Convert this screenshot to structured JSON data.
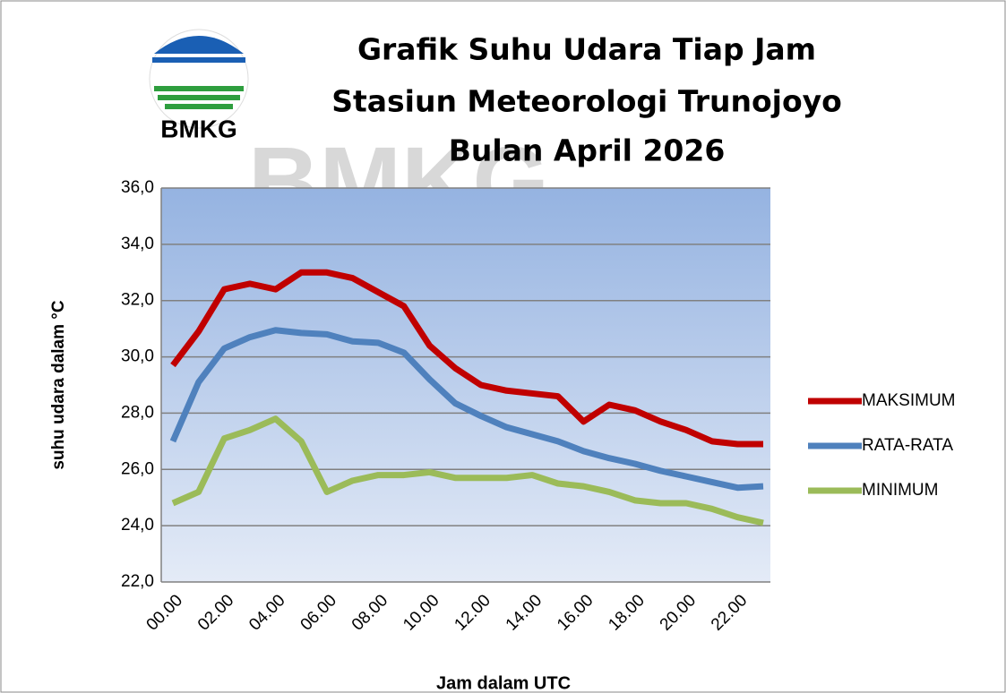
{
  "chart_data": {
    "type": "line",
    "title": [
      "Grafik Suhu Udara Tiap Jam",
      "Stasiun Meteorologi Trunojoyo",
      "Bulan April 2026"
    ],
    "logo_text": "BMKG",
    "watermark": "BMKG",
    "x_label": "Jam dalam UTC",
    "y_label": "suhu udara dalam °C",
    "categories": [
      "00.00",
      null,
      "02.00",
      null,
      "04.00",
      null,
      "06.00",
      null,
      "08.00",
      null,
      "10.00",
      null,
      "12.00",
      null,
      "14.00",
      null,
      "16.00",
      null,
      "18.00",
      null,
      "20.00",
      null,
      "22.00",
      null
    ],
    "series": [
      {
        "name": "MAKSIMUM",
        "color": "#c00000",
        "values": [
          29.7,
          30.9,
          32.4,
          32.6,
          32.4,
          33.0,
          33.0,
          32.8,
          32.3,
          31.8,
          30.4,
          29.6,
          29.0,
          28.8,
          28.7,
          28.6,
          27.7,
          28.3,
          28.1,
          27.7,
          27.4,
          27.0,
          26.9,
          26.9
        ]
      },
      {
        "name": "RATA-RATA",
        "color": "#4f81bd",
        "values": [
          27.0,
          29.1,
          30.3,
          30.7,
          30.95,
          30.85,
          30.8,
          30.55,
          30.5,
          30.15,
          29.2,
          28.35,
          27.9,
          27.5,
          27.25,
          27.0,
          26.65,
          26.4,
          26.2,
          25.95,
          25.75,
          25.55,
          25.35,
          25.4
        ]
      },
      {
        "name": "MINIMUM",
        "color": "#9bbb59",
        "values": [
          24.8,
          25.2,
          27.1,
          27.4,
          27.8,
          27.0,
          25.2,
          25.6,
          25.8,
          25.8,
          25.9,
          25.7,
          25.7,
          25.7,
          25.8,
          25.5,
          25.4,
          25.2,
          24.9,
          24.8,
          24.8,
          24.6,
          24.3,
          24.1
        ]
      }
    ],
    "ylim": [
      22,
      36
    ],
    "yticks": [
      {
        "value": 22,
        "label": "22,0"
      },
      {
        "value": 24,
        "label": "24,0"
      },
      {
        "value": 26,
        "label": "26,0"
      },
      {
        "value": 28,
        "label": "28,0"
      },
      {
        "value": 30,
        "label": "30,0"
      },
      {
        "value": 32,
        "label": "32,0"
      },
      {
        "value": 34,
        "label": "34,0"
      },
      {
        "value": 36,
        "label": "36,0"
      }
    ],
    "grid": true,
    "legend": "right"
  }
}
